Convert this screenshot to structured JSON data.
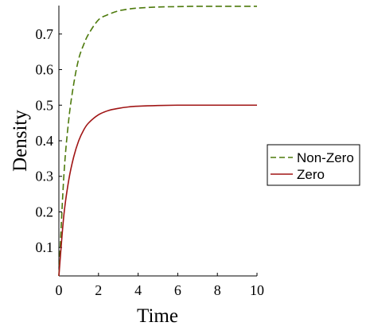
{
  "chart_data": {
    "type": "line",
    "title": "",
    "xlabel": "Time",
    "ylabel": "Density",
    "xlim": [
      0,
      10
    ],
    "ylim": [
      0.02,
      0.78
    ],
    "x_ticks": [
      0,
      2,
      4,
      6,
      8,
      10
    ],
    "y_ticks": [
      0.1,
      0.2,
      0.3,
      0.4,
      0.5,
      0.6,
      0.7
    ],
    "grid": false,
    "legend_position": "right",
    "series": [
      {
        "name": "Non-Zero",
        "color": "#4d7a0c",
        "dash": "dashed",
        "x": [
          0,
          0.25,
          0.5,
          0.75,
          1,
          1.25,
          1.5,
          2,
          2.5,
          3,
          3.5,
          4,
          5,
          6,
          7,
          8,
          9,
          10
        ],
        "y": [
          0.02,
          0.3,
          0.46,
          0.56,
          0.63,
          0.67,
          0.7,
          0.74,
          0.755,
          0.765,
          0.77,
          0.773,
          0.776,
          0.777,
          0.778,
          0.778,
          0.778,
          0.778
        ]
      },
      {
        "name": "Zero",
        "color": "#a01515",
        "dash": "solid",
        "x": [
          0,
          0.25,
          0.5,
          0.75,
          1,
          1.25,
          1.5,
          2,
          2.5,
          3,
          3.5,
          4,
          5,
          6,
          7,
          8,
          9,
          10
        ],
        "y": [
          0.02,
          0.19,
          0.29,
          0.355,
          0.4,
          0.43,
          0.45,
          0.473,
          0.485,
          0.491,
          0.495,
          0.497,
          0.499,
          0.5,
          0.5,
          0.5,
          0.5,
          0.5
        ]
      }
    ]
  }
}
